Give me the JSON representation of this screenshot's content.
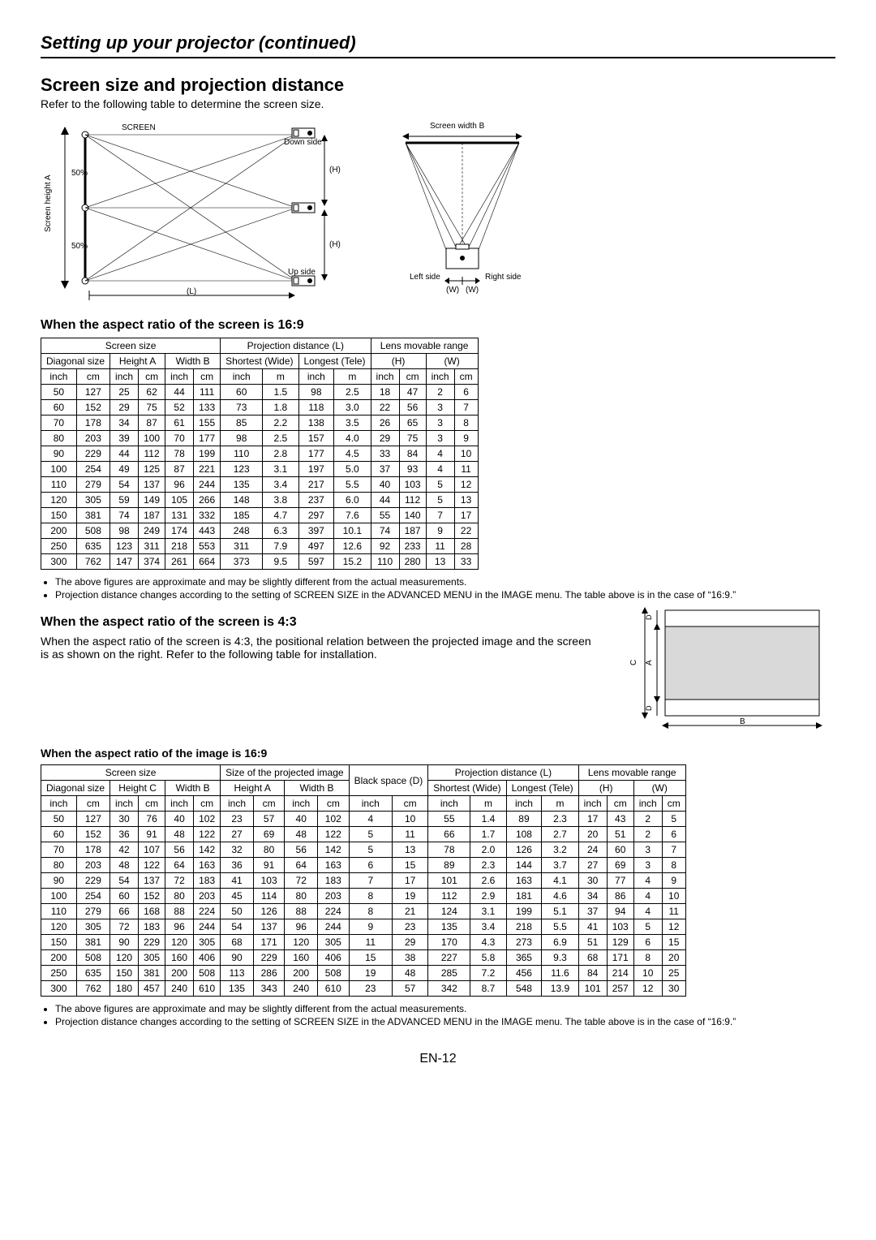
{
  "header": "Setting up your projector (continued)",
  "title": "Screen size and projection distance",
  "subtitle": "Refer to the following table to determine the screen size.",
  "diagram1": {
    "screen_label": "SCREEN",
    "screen_height_label": "Screen height A",
    "fifty_top": "50%",
    "fifty_bottom": "50%",
    "down_side": "Down side",
    "up_side": "Up side",
    "h_label": "(H)",
    "l_label": "(L)"
  },
  "diagram2": {
    "width_label": "Screen width B",
    "left_side": "Left side",
    "right_side": "Right side",
    "w_label": "(W)"
  },
  "table169": {
    "heading": "When the aspect ratio of the screen is 16:9",
    "group_headers": [
      "Screen size",
      "Projection distance (L)",
      "Lens movable range"
    ],
    "sub_headers": [
      "Diagonal size",
      "Height A",
      "Width B",
      "Shortest (Wide)",
      "Longest (Tele)",
      "(H)",
      "(W)"
    ],
    "unit_headers": [
      "inch",
      "cm",
      "inch",
      "cm",
      "inch",
      "cm",
      "inch",
      "m",
      "inch",
      "m",
      "inch",
      "cm",
      "inch",
      "cm"
    ],
    "rows": [
      [
        50,
        127,
        25,
        62,
        44,
        111,
        60,
        "1.5",
        98,
        "2.5",
        18,
        47,
        2,
        6
      ],
      [
        60,
        152,
        29,
        75,
        52,
        133,
        73,
        "1.8",
        118,
        "3.0",
        22,
        56,
        3,
        7
      ],
      [
        70,
        178,
        34,
        87,
        61,
        155,
        85,
        "2.2",
        138,
        "3.5",
        26,
        65,
        3,
        8
      ],
      [
        80,
        203,
        39,
        100,
        70,
        177,
        98,
        "2.5",
        157,
        "4.0",
        29,
        75,
        3,
        9
      ],
      [
        90,
        229,
        44,
        112,
        78,
        199,
        110,
        "2.8",
        177,
        "4.5",
        33,
        84,
        4,
        10
      ],
      [
        100,
        254,
        49,
        125,
        87,
        221,
        123,
        "3.1",
        197,
        "5.0",
        37,
        93,
        4,
        11
      ],
      [
        110,
        279,
        54,
        137,
        96,
        244,
        135,
        "3.4",
        217,
        "5.5",
        40,
        103,
        5,
        12
      ],
      [
        120,
        305,
        59,
        149,
        105,
        266,
        148,
        "3.8",
        237,
        "6.0",
        44,
        112,
        5,
        13
      ],
      [
        150,
        381,
        74,
        187,
        131,
        332,
        185,
        "4.7",
        297,
        "7.6",
        55,
        140,
        7,
        17
      ],
      [
        200,
        508,
        98,
        249,
        174,
        443,
        248,
        "6.3",
        397,
        "10.1",
        74,
        187,
        9,
        22
      ],
      [
        250,
        635,
        123,
        311,
        218,
        553,
        311,
        "7.9",
        497,
        "12.6",
        92,
        233,
        11,
        28
      ],
      [
        300,
        762,
        147,
        374,
        261,
        664,
        373,
        "9.5",
        597,
        "15.2",
        110,
        280,
        13,
        33
      ]
    ]
  },
  "notes_shared": [
    "The above figures are approximate and may be slightly different from the actual measurements.",
    "Projection distance changes according to the setting of SCREEN SIZE in the ADVANCED MENU in the IMAGE menu. The table above is in the case of “16:9.”"
  ],
  "ratio43": {
    "heading": "When the aspect ratio of the screen is 4:3",
    "text": "When the aspect ratio of the screen is 4:3, the positional relation between the projected image and the screen is as shown on the right. Refer to the following table for installation.",
    "diag": {
      "a": "A",
      "b": "B",
      "c": "C",
      "d": "D"
    }
  },
  "table43": {
    "heading": "When the aspect ratio of the image is 16:9",
    "group_headers": [
      "Screen size",
      "Size of the projected image",
      "Black space (D)",
      "Projection distance (L)",
      "Lens movable range"
    ],
    "sub_headers": [
      "Diagonal size",
      "Height C",
      "Width B",
      "Height A",
      "Width B",
      "",
      "Shortest (Wide)",
      "Longest (Tele)",
      "(H)",
      "(W)"
    ],
    "unit_headers": [
      "inch",
      "cm",
      "inch",
      "cm",
      "inch",
      "cm",
      "inch",
      "cm",
      "inch",
      "cm",
      "inch",
      "cm",
      "inch",
      "m",
      "inch",
      "m",
      "inch",
      "cm",
      "inch",
      "cm"
    ],
    "rows": [
      [
        50,
        127,
        30,
        76,
        40,
        102,
        23,
        57,
        40,
        102,
        4,
        10,
        55,
        "1.4",
        89,
        "2.3",
        17,
        43,
        2,
        5
      ],
      [
        60,
        152,
        36,
        91,
        48,
        122,
        27,
        69,
        48,
        122,
        5,
        11,
        66,
        "1.7",
        108,
        "2.7",
        20,
        51,
        2,
        6
      ],
      [
        70,
        178,
        42,
        107,
        56,
        142,
        32,
        80,
        56,
        142,
        5,
        13,
        78,
        "2.0",
        126,
        "3.2",
        24,
        60,
        3,
        7
      ],
      [
        80,
        203,
        48,
        122,
        64,
        163,
        36,
        91,
        64,
        163,
        6,
        15,
        89,
        "2.3",
        144,
        "3.7",
        27,
        69,
        3,
        8
      ],
      [
        90,
        229,
        54,
        137,
        72,
        183,
        41,
        103,
        72,
        183,
        7,
        17,
        101,
        "2.6",
        163,
        "4.1",
        30,
        77,
        4,
        9
      ],
      [
        100,
        254,
        60,
        152,
        80,
        203,
        45,
        114,
        80,
        203,
        8,
        19,
        112,
        "2.9",
        181,
        "4.6",
        34,
        86,
        4,
        10
      ],
      [
        110,
        279,
        66,
        168,
        88,
        224,
        50,
        126,
        88,
        224,
        8,
        21,
        124,
        "3.1",
        199,
        "5.1",
        37,
        94,
        4,
        11
      ],
      [
        120,
        305,
        72,
        183,
        96,
        244,
        54,
        137,
        96,
        244,
        9,
        23,
        135,
        "3.4",
        218,
        "5.5",
        41,
        103,
        5,
        12
      ],
      [
        150,
        381,
        90,
        229,
        120,
        305,
        68,
        171,
        120,
        305,
        11,
        29,
        170,
        "4.3",
        273,
        "6.9",
        51,
        129,
        6,
        15
      ],
      [
        200,
        508,
        120,
        305,
        160,
        406,
        90,
        229,
        160,
        406,
        15,
        38,
        227,
        "5.8",
        365,
        "9.3",
        68,
        171,
        8,
        20
      ],
      [
        250,
        635,
        150,
        381,
        200,
        508,
        113,
        286,
        200,
        508,
        19,
        48,
        285,
        "7.2",
        456,
        "11.6",
        84,
        214,
        10,
        25
      ],
      [
        300,
        762,
        180,
        457,
        240,
        610,
        135,
        343,
        240,
        610,
        23,
        57,
        342,
        "8.7",
        548,
        "13.9",
        101,
        257,
        12,
        30
      ]
    ]
  },
  "page_number": "EN-12"
}
